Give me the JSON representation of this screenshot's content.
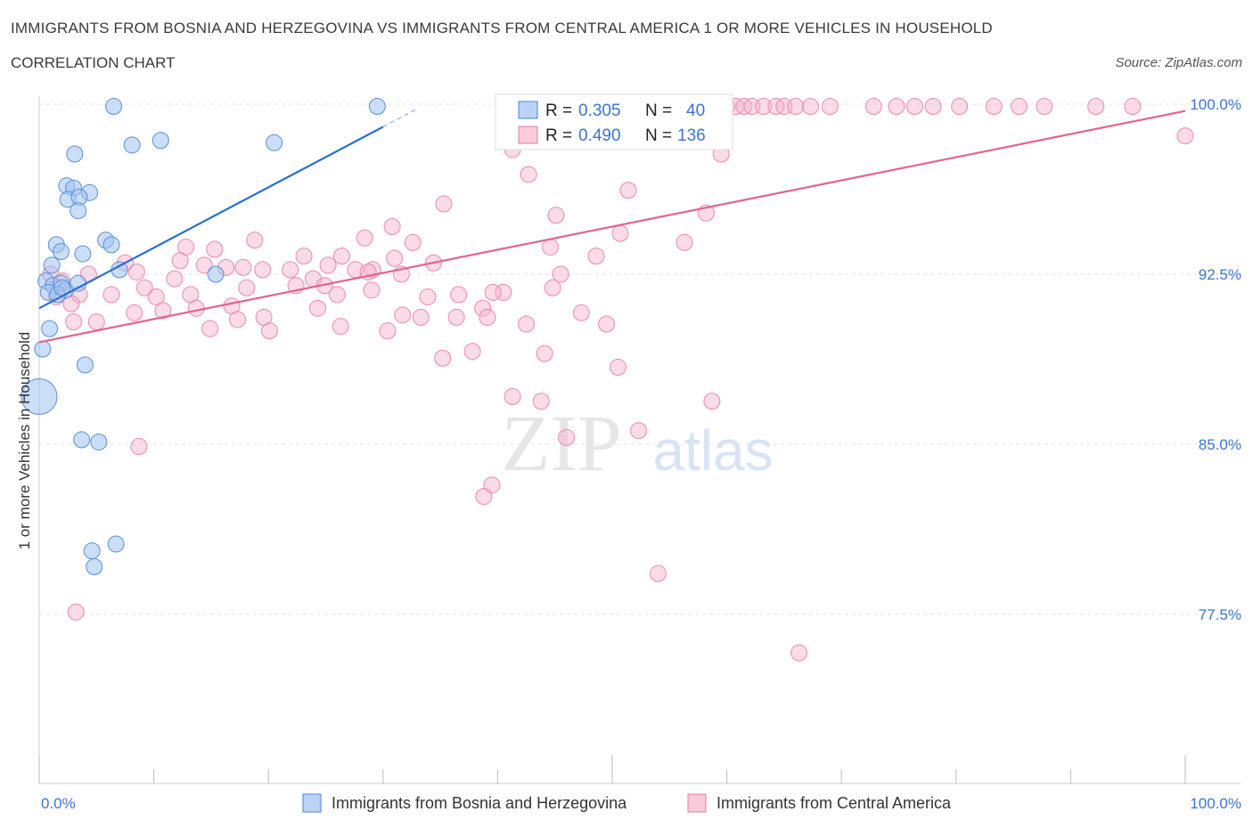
{
  "title": "IMMIGRANTS FROM BOSNIA AND HERZEGOVINA VS IMMIGRANTS FROM CENTRAL AMERICA 1 OR MORE VEHICLES IN HOUSEHOLD",
  "subtitle": "CORRELATION CHART",
  "source": "Source: ZipAtlas.com",
  "watermark": {
    "zip": "ZIP",
    "atlas": "atlas"
  },
  "colors": {
    "blue": "#4a86d8",
    "blue_fill": "#aac8f2",
    "pink": "#e57aa0",
    "pink_fill": "#f6bdd0",
    "blue_line": "#2a6fcf",
    "pink_line": "#e0658f",
    "tick_label": "#3d74cc"
  },
  "legend_box": {
    "blue": {
      "r_label": "R =",
      "r_value": "0.305",
      "n_label": "N =",
      "n_value": "40"
    },
    "pink": {
      "r_label": "R =",
      "r_value": "0.490",
      "n_label": "N =",
      "n_value": "136"
    }
  },
  "chart_data": {
    "type": "scatter",
    "ylabel": "1 or more Vehicles in Household",
    "xlim": [
      0,
      100
    ],
    "ylim": [
      70,
      100
    ],
    "x_tick_labels": [
      {
        "x": 0,
        "label": "0.0%"
      },
      {
        "x": 100,
        "label": "100.0%"
      }
    ],
    "y_ticks": [
      {
        "y": 100,
        "label": "100.0%"
      },
      {
        "y": 92.5,
        "label": "92.5%"
      },
      {
        "y": 85,
        "label": "85.0%"
      },
      {
        "y": 77.5,
        "label": "77.5%"
      }
    ],
    "grid": true,
    "series": [
      {
        "name": "Immigrants from Bosnia and Herzegovina",
        "color": "blue",
        "R": 0.305,
        "N": 40,
        "trend": {
          "x": [
            0,
            30
          ],
          "y": [
            91.0,
            99.0
          ],
          "dashed_extension": {
            "x": [
              30,
              33
            ],
            "y": [
              99.0,
              99.8
            ]
          }
        },
        "points": [
          {
            "x": 6.5,
            "y": 99.9
          },
          {
            "x": 29.5,
            "y": 99.9
          },
          {
            "x": 8.1,
            "y": 98.2
          },
          {
            "x": 10.6,
            "y": 98.4
          },
          {
            "x": 20.5,
            "y": 98.3
          },
          {
            "x": 3.1,
            "y": 97.8
          },
          {
            "x": 2.4,
            "y": 96.4
          },
          {
            "x": 3.0,
            "y": 96.3
          },
          {
            "x": 4.4,
            "y": 96.1
          },
          {
            "x": 2.5,
            "y": 95.8
          },
          {
            "x": 3.5,
            "y": 95.9
          },
          {
            "x": 3.4,
            "y": 95.3
          },
          {
            "x": 1.5,
            "y": 93.8
          },
          {
            "x": 5.8,
            "y": 94.0
          },
          {
            "x": 6.3,
            "y": 93.8
          },
          {
            "x": 1.9,
            "y": 93.5
          },
          {
            "x": 3.8,
            "y": 93.4
          },
          {
            "x": 1.1,
            "y": 92.9
          },
          {
            "x": 7.0,
            "y": 92.7
          },
          {
            "x": 15.4,
            "y": 92.5
          },
          {
            "x": 0.6,
            "y": 92.2
          },
          {
            "x": 1.2,
            "y": 92.0
          },
          {
            "x": 1.9,
            "y": 92.1
          },
          {
            "x": 2.3,
            "y": 91.8
          },
          {
            "x": 3.4,
            "y": 92.1
          },
          {
            "x": 0.8,
            "y": 91.7
          },
          {
            "x": 1.6,
            "y": 91.6
          },
          {
            "x": 2.0,
            "y": 91.9
          },
          {
            "x": 0.9,
            "y": 90.1
          },
          {
            "x": 0.3,
            "y": 89.2
          },
          {
            "x": 4.0,
            "y": 88.5
          },
          {
            "x": 0.0,
            "y": 87.1,
            "size": "large"
          },
          {
            "x": 3.7,
            "y": 85.2
          },
          {
            "x": 5.2,
            "y": 85.1
          },
          {
            "x": 6.7,
            "y": 80.6
          },
          {
            "x": 4.6,
            "y": 80.3
          },
          {
            "x": 4.8,
            "y": 79.6
          }
        ]
      },
      {
        "name": "Immigrants from Central America",
        "color": "pink",
        "R": 0.49,
        "N": 136,
        "trend": {
          "x": [
            0,
            100
          ],
          "y": [
            89.5,
            99.7
          ]
        },
        "points": [
          {
            "x": 47.7,
            "y": 99.9
          },
          {
            "x": 50.1,
            "y": 99.9
          },
          {
            "x": 53.5,
            "y": 99.9
          },
          {
            "x": 54.5,
            "y": 99.9
          },
          {
            "x": 55.2,
            "y": 99.9
          },
          {
            "x": 56.6,
            "y": 99.9
          },
          {
            "x": 57.5,
            "y": 99.9
          },
          {
            "x": 60.0,
            "y": 99.9
          },
          {
            "x": 60.8,
            "y": 99.9
          },
          {
            "x": 61.5,
            "y": 99.9
          },
          {
            "x": 62.2,
            "y": 99.9
          },
          {
            "x": 63.2,
            "y": 99.9
          },
          {
            "x": 64.3,
            "y": 99.9
          },
          {
            "x": 65.0,
            "y": 99.9
          },
          {
            "x": 66.0,
            "y": 99.9
          },
          {
            "x": 67.3,
            "y": 99.9
          },
          {
            "x": 69.0,
            "y": 99.9
          },
          {
            "x": 72.8,
            "y": 99.9
          },
          {
            "x": 74.8,
            "y": 99.9
          },
          {
            "x": 76.4,
            "y": 99.9
          },
          {
            "x": 78.0,
            "y": 99.9
          },
          {
            "x": 80.3,
            "y": 99.9
          },
          {
            "x": 83.3,
            "y": 99.9
          },
          {
            "x": 85.5,
            "y": 99.9
          },
          {
            "x": 87.7,
            "y": 99.9
          },
          {
            "x": 92.2,
            "y": 99.9
          },
          {
            "x": 95.4,
            "y": 99.9
          },
          {
            "x": 100.0,
            "y": 98.6
          },
          {
            "x": 59.5,
            "y": 97.8
          },
          {
            "x": 41.3,
            "y": 98.0
          },
          {
            "x": 42.7,
            "y": 96.9
          },
          {
            "x": 51.4,
            "y": 96.2
          },
          {
            "x": 35.3,
            "y": 95.6
          },
          {
            "x": 45.1,
            "y": 95.1
          },
          {
            "x": 58.2,
            "y": 95.2
          },
          {
            "x": 30.8,
            "y": 94.6
          },
          {
            "x": 28.4,
            "y": 94.1
          },
          {
            "x": 50.7,
            "y": 94.3
          },
          {
            "x": 18.8,
            "y": 94.0
          },
          {
            "x": 32.6,
            "y": 93.9
          },
          {
            "x": 56.3,
            "y": 93.9
          },
          {
            "x": 44.6,
            "y": 93.7
          },
          {
            "x": 12.8,
            "y": 93.7
          },
          {
            "x": 15.3,
            "y": 93.6
          },
          {
            "x": 48.6,
            "y": 93.3
          },
          {
            "x": 23.1,
            "y": 93.3
          },
          {
            "x": 26.4,
            "y": 93.3
          },
          {
            "x": 31.0,
            "y": 93.2
          },
          {
            "x": 7.5,
            "y": 93.0
          },
          {
            "x": 12.3,
            "y": 93.1
          },
          {
            "x": 14.4,
            "y": 92.9
          },
          {
            "x": 34.4,
            "y": 93.0
          },
          {
            "x": 25.2,
            "y": 92.9
          },
          {
            "x": 27.6,
            "y": 92.7
          },
          {
            "x": 16.3,
            "y": 92.8
          },
          {
            "x": 21.9,
            "y": 92.7
          },
          {
            "x": 29.1,
            "y": 92.7
          },
          {
            "x": 8.5,
            "y": 92.6
          },
          {
            "x": 17.8,
            "y": 92.8
          },
          {
            "x": 19.5,
            "y": 92.7
          },
          {
            "x": 28.7,
            "y": 92.6
          },
          {
            "x": 31.6,
            "y": 92.5
          },
          {
            "x": 45.5,
            "y": 92.5
          },
          {
            "x": 23.9,
            "y": 92.3
          },
          {
            "x": 11.8,
            "y": 92.3
          },
          {
            "x": 1.0,
            "y": 92.5
          },
          {
            "x": 4.3,
            "y": 92.5
          },
          {
            "x": 2.0,
            "y": 92.2
          },
          {
            "x": 9.2,
            "y": 91.9
          },
          {
            "x": 18.1,
            "y": 91.9
          },
          {
            "x": 22.4,
            "y": 92.0
          },
          {
            "x": 24.9,
            "y": 92.0
          },
          {
            "x": 40.5,
            "y": 91.7
          },
          {
            "x": 44.8,
            "y": 91.9
          },
          {
            "x": 29.0,
            "y": 91.8
          },
          {
            "x": 3.5,
            "y": 91.6
          },
          {
            "x": 6.3,
            "y": 91.6
          },
          {
            "x": 10.2,
            "y": 91.5
          },
          {
            "x": 13.2,
            "y": 91.6
          },
          {
            "x": 26.0,
            "y": 91.6
          },
          {
            "x": 33.9,
            "y": 91.5
          },
          {
            "x": 39.6,
            "y": 91.7
          },
          {
            "x": 36.6,
            "y": 91.6
          },
          {
            "x": 1.5,
            "y": 91.5
          },
          {
            "x": 2.8,
            "y": 91.2
          },
          {
            "x": 10.8,
            "y": 90.9
          },
          {
            "x": 13.7,
            "y": 91.0
          },
          {
            "x": 16.8,
            "y": 91.1
          },
          {
            "x": 24.3,
            "y": 91.0
          },
          {
            "x": 38.7,
            "y": 91.0
          },
          {
            "x": 8.3,
            "y": 90.8
          },
          {
            "x": 31.7,
            "y": 90.7
          },
          {
            "x": 33.3,
            "y": 90.6
          },
          {
            "x": 36.4,
            "y": 90.6
          },
          {
            "x": 39.1,
            "y": 90.6
          },
          {
            "x": 47.3,
            "y": 90.8
          },
          {
            "x": 3.0,
            "y": 90.4
          },
          {
            "x": 5.0,
            "y": 90.4
          },
          {
            "x": 17.3,
            "y": 90.5
          },
          {
            "x": 19.6,
            "y": 90.6
          },
          {
            "x": 26.3,
            "y": 90.2
          },
          {
            "x": 30.4,
            "y": 90.0
          },
          {
            "x": 42.5,
            "y": 90.3
          },
          {
            "x": 49.5,
            "y": 90.3
          },
          {
            "x": 14.9,
            "y": 90.1
          },
          {
            "x": 20.1,
            "y": 90.0
          },
          {
            "x": 37.8,
            "y": 89.1
          },
          {
            "x": 35.2,
            "y": 88.8
          },
          {
            "x": 44.1,
            "y": 89.0
          },
          {
            "x": 50.5,
            "y": 88.4
          },
          {
            "x": 41.3,
            "y": 87.1
          },
          {
            "x": 43.8,
            "y": 86.9
          },
          {
            "x": 58.7,
            "y": 86.9
          },
          {
            "x": 52.3,
            "y": 85.6
          },
          {
            "x": 46.0,
            "y": 85.3
          },
          {
            "x": 8.7,
            "y": 84.9
          },
          {
            "x": 39.5,
            "y": 83.2
          },
          {
            "x": 38.8,
            "y": 82.7
          },
          {
            "x": 54.0,
            "y": 79.3
          },
          {
            "x": 3.2,
            "y": 77.6
          },
          {
            "x": 66.3,
            "y": 75.8
          }
        ]
      }
    ]
  },
  "legend": [
    {
      "label": "Immigrants from Bosnia and Herzegovina",
      "color": "blue"
    },
    {
      "label": "Immigrants from Central America",
      "color": "pink"
    }
  ]
}
